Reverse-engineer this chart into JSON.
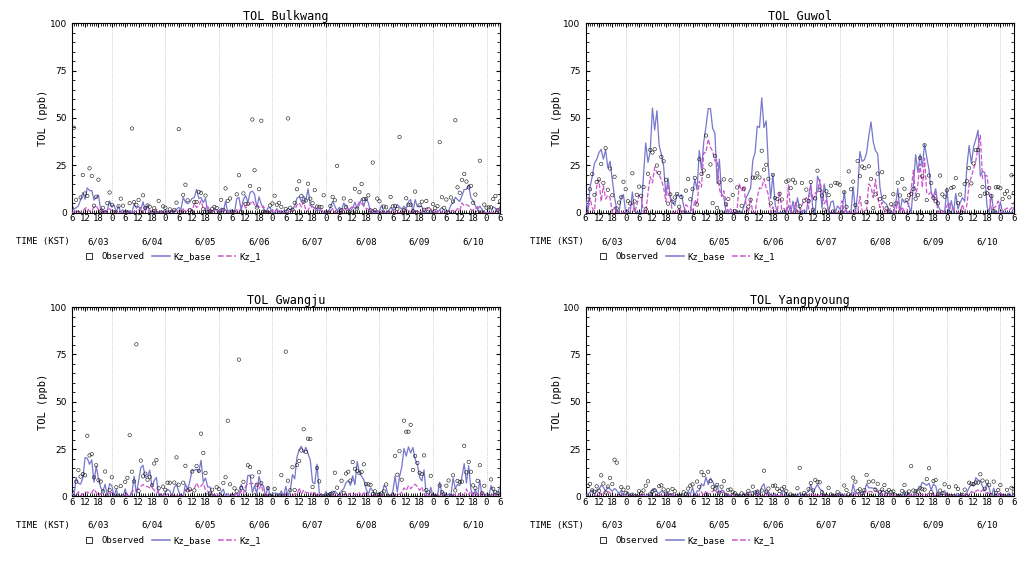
{
  "titles": [
    "TOL Bulkwang",
    "TOL Guwol",
    "TOL Gwangju",
    "TOL Yangpyoung"
  ],
  "ylabel": "TOL (ppb)",
  "xlabel_prefix": "TIME (KST)",
  "ylim": [
    0,
    100
  ],
  "yticks": [
    0,
    25,
    50,
    75,
    100
  ],
  "date_labels": [
    "6/03",
    "6/04",
    "6/05",
    "6/06",
    "6/07",
    "6/08",
    "6/09",
    "6/10"
  ],
  "n_hours": 193,
  "kz_base_color": "#7777cc",
  "kz_1_color": "#cc55cc",
  "obs_color": "#111111",
  "background_color": "#ffffff",
  "grid_color": "#aaaaaa",
  "title_fontsize": 8.5,
  "tick_fontsize": 6.5,
  "label_fontsize": 7.5,
  "legend_fontsize": 6.5,
  "line_width": 0.9
}
